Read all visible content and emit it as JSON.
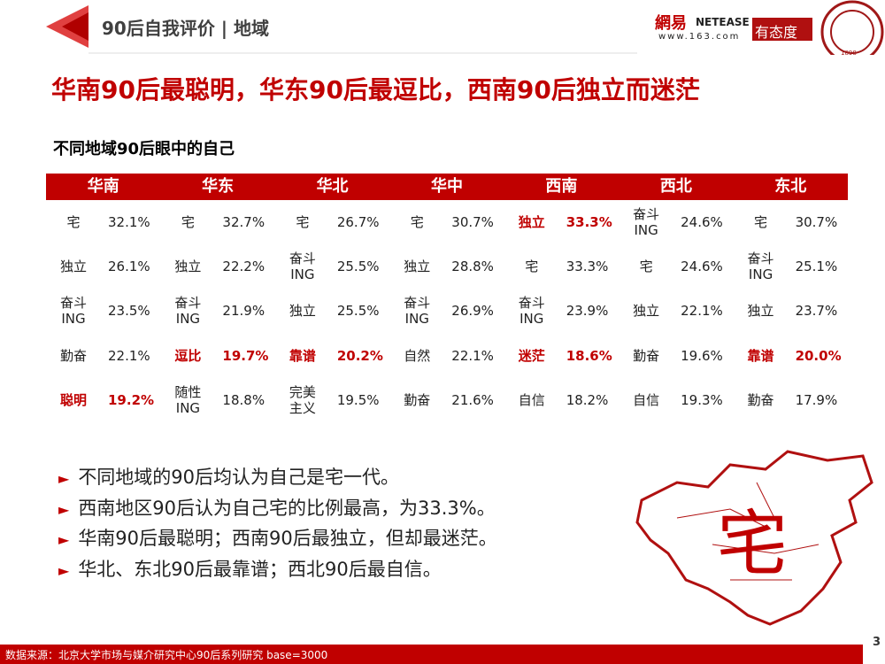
{
  "header": {
    "title": "90后自我评价 | 地域",
    "logo_main": "網易",
    "logo_brand": "NETEASE",
    "logo_url": "www.163.com",
    "logo_slogan": "有态度",
    "seal_year": "1898"
  },
  "headline": "华南90后最聪明，华东90后最逗比，西南90后独立而迷茫",
  "subtitle": "不同地域90后眼中的自己",
  "table": {
    "columns": [
      {
        "region": "华南",
        "rows": [
          {
            "label": "宅",
            "value": "32.1%"
          },
          {
            "label": "独立",
            "value": "26.1%"
          },
          {
            "label": "奋斗ING",
            "value": "23.5%"
          },
          {
            "label": "勤奋",
            "value": "22.1%"
          },
          {
            "label": "聪明",
            "value": "19.2%",
            "emphasis": true
          }
        ]
      },
      {
        "region": "华东",
        "rows": [
          {
            "label": "宅",
            "value": "32.7%"
          },
          {
            "label": "独立",
            "value": "22.2%"
          },
          {
            "label": "奋斗ING",
            "value": "21.9%"
          },
          {
            "label": "逗比",
            "value": "19.7%",
            "emphasis": true
          },
          {
            "label": "随性ING",
            "value": "18.8%"
          }
        ]
      },
      {
        "region": "华北",
        "rows": [
          {
            "label": "宅",
            "value": "26.7%"
          },
          {
            "label": "奋斗ING",
            "value": "25.5%"
          },
          {
            "label": "独立",
            "value": "25.5%"
          },
          {
            "label": "靠谱",
            "value": "20.2%",
            "emphasis": true
          },
          {
            "label": "完美主义",
            "value": "19.5%"
          }
        ]
      },
      {
        "region": "华中",
        "rows": [
          {
            "label": "宅",
            "value": "30.7%"
          },
          {
            "label": "独立",
            "value": "28.8%"
          },
          {
            "label": "奋斗ING",
            "value": "26.9%"
          },
          {
            "label": "自然",
            "value": "22.1%"
          },
          {
            "label": "勤奋",
            "value": "21.6%"
          }
        ]
      },
      {
        "region": "西南",
        "rows": [
          {
            "label": "独立",
            "value": "33.3%",
            "emphasis": true
          },
          {
            "label": "宅",
            "value": "33.3%"
          },
          {
            "label": "奋斗ING",
            "value": "23.9%"
          },
          {
            "label": "迷茫",
            "value": "18.6%",
            "emphasis": true
          },
          {
            "label": "自信",
            "value": "18.2%"
          }
        ]
      },
      {
        "region": "西北",
        "rows": [
          {
            "label": "奋斗ING",
            "value": "24.6%"
          },
          {
            "label": "宅",
            "value": "24.6%"
          },
          {
            "label": "独立",
            "value": "22.1%"
          },
          {
            "label": "勤奋",
            "value": "19.6%"
          },
          {
            "label": "自信",
            "value": "19.3%"
          }
        ]
      },
      {
        "region": "东北",
        "rows": [
          {
            "label": "宅",
            "value": "30.7%"
          },
          {
            "label": "奋斗ING",
            "value": "25.1%"
          },
          {
            "label": "独立",
            "value": "23.7%"
          },
          {
            "label": "靠谱",
            "value": "20.0%",
            "emphasis": true
          },
          {
            "label": "勤奋",
            "value": "17.9%"
          }
        ]
      }
    ]
  },
  "bullets": [
    "不同地域的90后均认为自己是宅一代。",
    "西南地区90后认为自己宅的比例最高，为33.3%。",
    "华南90后最聪明；西南90后最独立，但却最迷茫。",
    "华北、东北90后最靠谱；西北90后最自信。"
  ],
  "map_label": "宅",
  "footer": {
    "source": "数据来源：北京大学市场与媒介研究中心90后系列研究 base=3000",
    "page": "3"
  }
}
